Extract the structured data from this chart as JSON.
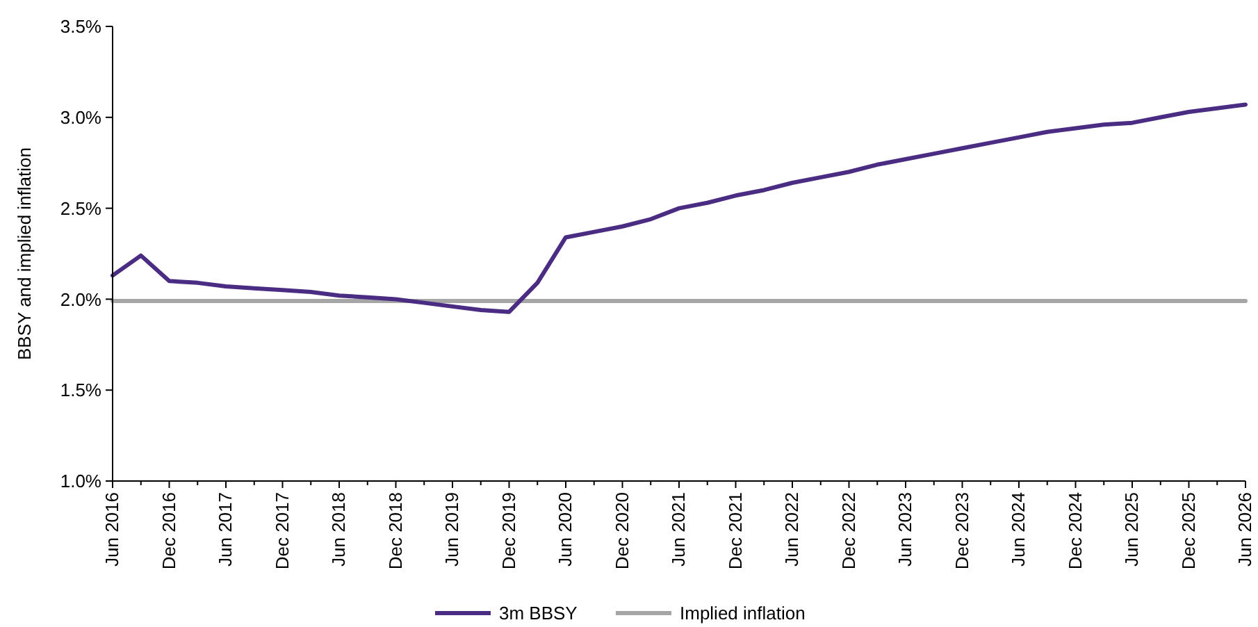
{
  "chart_data": {
    "type": "line",
    "ylabel": "BBSY and implied inflation",
    "categories": [
      "Jun 2016",
      null,
      "Dec 2016",
      null,
      "Jun 2017",
      null,
      "Dec 2017",
      null,
      "Jun 2018",
      null,
      "Dec 2018",
      null,
      "Jun 2019",
      null,
      "Dec 2019",
      null,
      "Jun 2020",
      null,
      "Dec 2020",
      null,
      "Jun 2021",
      null,
      "Dec 2021",
      null,
      "Jun 2022",
      null,
      "Dec 2022",
      null,
      "Jun 2023",
      null,
      "Dec 2023",
      null,
      "Jun 2024",
      null,
      "Dec 2024",
      null,
      "Jun 2025",
      null,
      "Dec 2025",
      null,
      "Jun 2026"
    ],
    "series": [
      {
        "name": "3m BBSY",
        "color": "#4b2c83",
        "values": [
          2.13,
          2.24,
          2.1,
          2.09,
          2.07,
          2.06,
          2.05,
          2.04,
          2.02,
          2.01,
          2.0,
          1.98,
          1.96,
          1.94,
          1.93,
          2.09,
          2.34,
          2.37,
          2.4,
          2.44,
          2.5,
          2.53,
          2.57,
          2.6,
          2.64,
          2.67,
          2.7,
          2.74,
          2.77,
          2.8,
          2.83,
          2.86,
          2.89,
          2.92,
          2.94,
          2.96,
          2.97,
          3.0,
          3.03,
          3.05,
          3.07
        ]
      },
      {
        "name": "Implied inflation",
        "color": "#a6a6a6",
        "values": [
          1.99,
          1.99,
          1.99,
          1.99,
          1.99,
          1.99,
          1.99,
          1.99,
          1.99,
          1.99,
          1.99,
          1.99,
          1.99,
          1.99,
          1.99,
          1.99,
          1.99,
          1.99,
          1.99,
          1.99,
          1.99,
          1.99,
          1.99,
          1.99,
          1.99,
          1.99,
          1.99,
          1.99,
          1.99,
          1.99,
          1.99,
          1.99,
          1.99,
          1.99,
          1.99,
          1.99,
          1.99,
          1.99,
          1.99,
          1.99,
          1.99
        ]
      }
    ],
    "ylim": [
      1.0,
      3.5
    ],
    "yticks": [
      {
        "value": 1.0,
        "label": "1.0%"
      },
      {
        "value": 1.5,
        "label": "1.5%"
      },
      {
        "value": 2.0,
        "label": "2.0%"
      },
      {
        "value": 2.5,
        "label": "2.5%"
      },
      {
        "value": 3.0,
        "label": "3.0%"
      },
      {
        "value": 3.5,
        "label": "3.5%"
      }
    ],
    "legend": "bottom",
    "grid": false,
    "marker": "none",
    "line_style": "solid"
  }
}
